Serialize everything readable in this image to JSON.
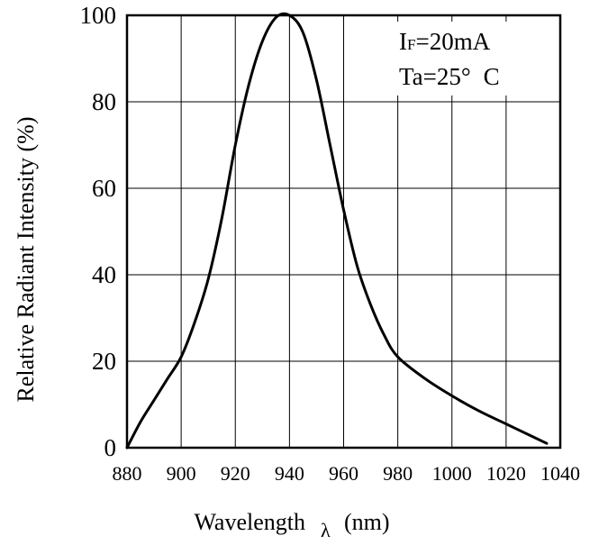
{
  "chart_data": {
    "type": "line",
    "title": "",
    "xlabel": "Wavelength",
    "xlabel_symbol": "λ",
    "xlabel_unit": "(nm)",
    "ylabel": "Relative Radiant Intensity (%)",
    "xlim": [
      880,
      1040
    ],
    "ylim": [
      0,
      100
    ],
    "grid": true,
    "x_ticks": [
      "880",
      "900",
      "920",
      "940",
      "960",
      "980",
      "1000",
      "1020",
      "1040"
    ],
    "y_ticks": [
      "0",
      "20",
      "40",
      "60",
      "80",
      "100"
    ],
    "annotation": {
      "line1_main": "I",
      "line1_sub": "F",
      "line1_value": "=20mA",
      "line2_a": "Ta=25°",
      "line2_b": "C"
    },
    "series": [
      {
        "x": [
          880,
          885,
          890,
          895,
          900,
          905,
          910,
          915,
          920,
          925,
          930,
          935,
          940,
          945,
          950,
          955,
          960,
          965,
          970,
          975,
          980,
          990,
          1000,
          1010,
          1020,
          1030,
          1035
        ],
        "y": [
          0,
          6,
          11,
          16,
          21,
          29,
          39,
          53,
          70,
          84,
          94,
          99.5,
          100,
          96,
          85,
          70,
          55,
          42,
          33,
          26,
          21,
          16,
          12,
          8.5,
          5.5,
          2.5,
          1
        ]
      }
    ]
  }
}
